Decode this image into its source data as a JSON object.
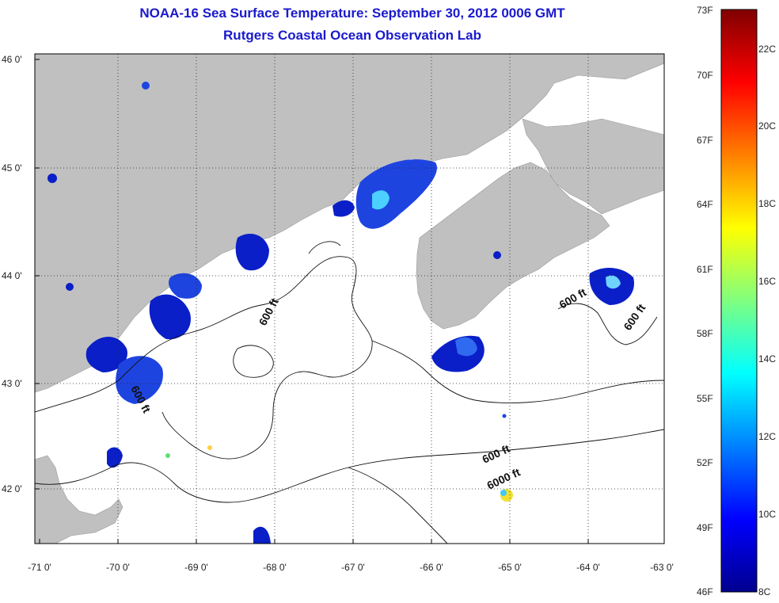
{
  "header": {
    "title": "NOAA-16 Sea Surface Temperature:  September 30, 2012 0006 GMT",
    "subtitle": "Rutgers Coastal Ocean Observation Lab"
  },
  "map": {
    "lon_ticks": [
      "-71 0'",
      "-70 0'",
      "-69 0'",
      "-68 0'",
      "-67 0'",
      "-66 0'",
      "-65 0'",
      "-64 0'",
      "-63 0'"
    ],
    "lat_ticks": [
      "46 0'",
      "45 0'",
      "44 0'",
      "43 0'",
      "42 0'"
    ],
    "contour_labels": [
      "600 ft",
      "600 ft",
      "600 ft",
      "600 ft",
      "6000 ft",
      "600 ft"
    ],
    "land_color": "#c0c0c0",
    "water_color": "#ffffff"
  },
  "colorbar": {
    "fahrenheit": [
      "73F",
      "70F",
      "67F",
      "64F",
      "61F",
      "58F",
      "55F",
      "52F",
      "49F",
      "46F"
    ],
    "celsius": [
      "22C",
      "20C",
      "18C",
      "16C",
      "14C",
      "12C",
      "10C",
      "8C"
    ]
  }
}
